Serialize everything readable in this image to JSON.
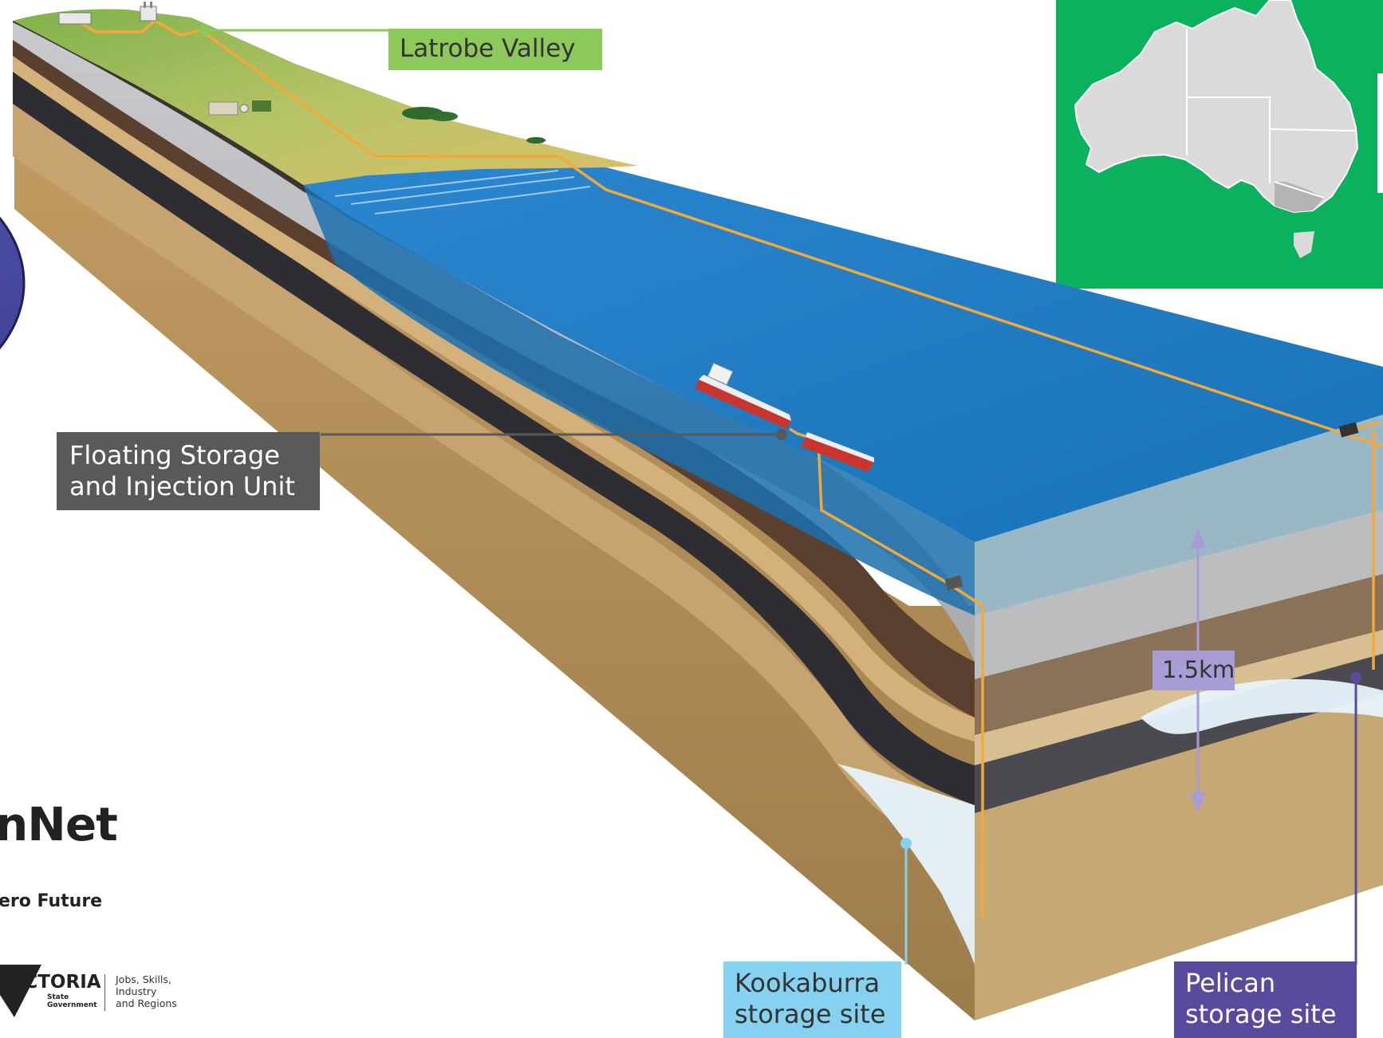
{
  "labels": {
    "latrobe": "Latrobe Valley",
    "fsiu_line1": "Floating Storage",
    "fsiu_line2": "and Injection Unit",
    "depth": "1.5km",
    "kookaburra_line1": "Kookaburra",
    "kookaburra_line2": "storage site",
    "pelican_line1": "Pelican",
    "pelican_line2": "storage site"
  },
  "branding": {
    "project_name_partial": "nNet",
    "tagline_partial": "ero Future",
    "victoria_word": "VICTORIA",
    "victoria_sub_1": "State",
    "victoria_sub_2": "Government",
    "department_1": "Jobs, Skills,",
    "department_2": "Industry",
    "department_3": "and Regions"
  },
  "colors": {
    "pipeline": "#f2a93b",
    "ocean": "#1f7fc2",
    "ocean_front": "#2d8cc8",
    "water_face": "#9ab7c6",
    "land_green": "#8ab85a",
    "land_sand": "#d9bf67",
    "gray_layer": "#bfc1c4",
    "brown_layer": "#5b4030",
    "coal_layer": "#2b2b2f",
    "sand_layer": "#c9a46c",
    "deep_layer": "#a98957",
    "map_bg": "#0bb15c",
    "map_land": "#dadada",
    "victoria_highlight": "#b3b3b3",
    "purple_accent": "#5a4a9e",
    "light_blue_accent": "#86d0f0",
    "latrobe_green": "#8cc85a",
    "fsiu_gray": "#58595b",
    "depth_lavender": "#a89cd4"
  },
  "icons": {
    "vessel": "ship-icon",
    "subsea_unit": "wellhead-icon",
    "inset": "australia-map-icon"
  }
}
